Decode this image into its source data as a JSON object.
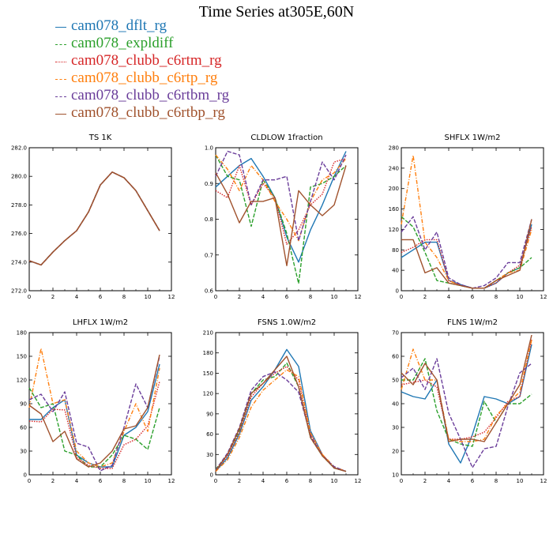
{
  "page": {
    "title": "Time Series at305E,60N"
  },
  "legend": [
    {
      "label": "cam078_dflt_rg",
      "color": "#1f77b4",
      "dash": "solid"
    },
    {
      "label": "cam078_expldiff",
      "color": "#2ca02c",
      "dash": "dashed"
    },
    {
      "label": "cam078_clubb_c6rtm_rg",
      "color": "#d62728",
      "dash": "dotted"
    },
    {
      "label": "cam078_clubb_c6rtp_rg",
      "color": "#ff7f0e",
      "dash": "dashdot"
    },
    {
      "label": "cam078_clubb_c6rtbm_rg",
      "color": "#6a3d9a",
      "dash": "dashed"
    },
    {
      "label": "cam078_clubb_c6rtbp_rg",
      "color": "#a0522d",
      "dash": "solid"
    }
  ],
  "chart_data": [
    {
      "type": "line",
      "title": "TS   1K",
      "xlim": [
        0,
        12
      ],
      "ylim": [
        272.0,
        282.0
      ],
      "xticks": [
        0,
        2,
        4,
        6,
        8,
        10,
        12
      ],
      "yticks": [
        272.0,
        274.0,
        276.0,
        278.0,
        280.0,
        282.0
      ],
      "ytick_labels": [
        "272.0",
        "274.0",
        "276.0",
        "278.0",
        "280.0",
        "282.0"
      ],
      "x": [
        0,
        1,
        2,
        3,
        4,
        5,
        6,
        7,
        8,
        9,
        10,
        11
      ],
      "series": [
        {
          "name": "cam078_dflt_rg",
          "values": [
            274.1,
            273.8,
            274.7,
            275.5,
            276.2,
            277.5,
            279.4,
            280.3,
            279.9,
            279.0,
            277.6,
            276.2
          ]
        },
        {
          "name": "cam078_expldiff",
          "values": [
            274.1,
            273.8,
            274.7,
            275.5,
            276.2,
            277.5,
            279.4,
            280.3,
            279.9,
            279.0,
            277.6,
            276.2
          ]
        },
        {
          "name": "cam078_clubb_c6rtm_rg",
          "values": [
            274.1,
            273.8,
            274.7,
            275.5,
            276.2,
            277.5,
            279.4,
            280.3,
            279.9,
            279.0,
            277.6,
            276.2
          ]
        },
        {
          "name": "cam078_clubb_c6rtp_rg",
          "values": [
            274.1,
            273.8,
            274.7,
            275.5,
            276.2,
            277.5,
            279.4,
            280.3,
            279.9,
            279.0,
            277.6,
            276.2
          ]
        },
        {
          "name": "cam078_clubb_c6rtbm_rg",
          "values": [
            274.1,
            273.8,
            274.7,
            275.5,
            276.2,
            277.5,
            279.4,
            280.3,
            279.9,
            279.0,
            277.6,
            276.2
          ]
        },
        {
          "name": "cam078_clubb_c6rtbp_rg",
          "values": [
            274.1,
            273.8,
            274.7,
            275.5,
            276.2,
            277.5,
            279.4,
            280.3,
            279.9,
            279.0,
            277.6,
            276.2
          ]
        }
      ]
    },
    {
      "type": "line",
      "title": "CLDLOW   1fraction",
      "xlim": [
        0,
        12
      ],
      "ylim": [
        0.6,
        1.0
      ],
      "xticks": [
        0,
        2,
        4,
        6,
        8,
        10,
        12
      ],
      "yticks": [
        0.6,
        0.7,
        0.8,
        0.9,
        1.0
      ],
      "ytick_labels": [
        "0.6",
        "0.7",
        "0.8",
        "0.9",
        "1.0"
      ],
      "x": [
        0,
        1,
        2,
        3,
        4,
        5,
        6,
        7,
        8,
        9,
        10,
        11
      ],
      "series": [
        {
          "name": "cam078_dflt_rg",
          "values": [
            0.89,
            0.92,
            0.95,
            0.97,
            0.92,
            0.86,
            0.75,
            0.68,
            0.77,
            0.84,
            0.92,
            0.99
          ]
        },
        {
          "name": "cam078_expldiff",
          "values": [
            0.98,
            0.92,
            0.91,
            0.78,
            0.91,
            0.86,
            0.76,
            0.62,
            0.89,
            0.9,
            0.92,
            0.95
          ]
        },
        {
          "name": "cam078_clubb_c6rtm_rg",
          "values": [
            0.88,
            0.86,
            0.95,
            0.84,
            0.9,
            0.86,
            0.73,
            0.77,
            0.84,
            0.87,
            0.96,
            0.97
          ]
        },
        {
          "name": "cam078_clubb_c6rtp_rg",
          "values": [
            0.98,
            0.94,
            0.88,
            0.95,
            0.91,
            0.85,
            0.8,
            0.74,
            0.85,
            0.91,
            0.93,
            0.97
          ]
        },
        {
          "name": "cam078_clubb_c6rtbm_rg",
          "values": [
            0.92,
            0.99,
            0.98,
            0.84,
            0.91,
            0.91,
            0.92,
            0.74,
            0.85,
            0.96,
            0.91,
            0.98
          ]
        },
        {
          "name": "cam078_clubb_c6rtbp_rg",
          "values": [
            0.93,
            0.87,
            0.79,
            0.85,
            0.85,
            0.86,
            0.67,
            0.88,
            0.84,
            0.81,
            0.84,
            0.95
          ]
        }
      ]
    },
    {
      "type": "line",
      "title": "SHFLX   1W/m2",
      "xlim": [
        0,
        12
      ],
      "ylim": [
        0,
        280
      ],
      "xticks": [
        0,
        2,
        4,
        6,
        8,
        10,
        12
      ],
      "yticks": [
        0,
        40,
        80,
        120,
        160,
        200,
        240,
        280
      ],
      "ytick_labels": [
        "0",
        "40",
        "80",
        "120",
        "160",
        "200",
        "240",
        "280"
      ],
      "x": [
        0,
        1,
        2,
        3,
        4,
        5,
        6,
        7,
        8,
        9,
        10,
        11
      ],
      "series": [
        {
          "name": "cam078_dflt_rg",
          "values": [
            65,
            80,
            95,
            95,
            20,
            12,
            5,
            5,
            15,
            35,
            45,
            130
          ]
        },
        {
          "name": "cam078_expldiff",
          "values": [
            145,
            125,
            75,
            20,
            15,
            10,
            5,
            5,
            20,
            35,
            45,
            65
          ]
        },
        {
          "name": "cam078_clubb_c6rtm_rg",
          "values": [
            75,
            85,
            100,
            100,
            20,
            10,
            5,
            5,
            15,
            35,
            50,
            125
          ]
        },
        {
          "name": "cam078_clubb_c6rtp_rg",
          "values": [
            130,
            265,
            95,
            65,
            20,
            10,
            5,
            5,
            20,
            35,
            40,
            120
          ]
        },
        {
          "name": "cam078_clubb_c6rtbm_rg",
          "values": [
            115,
            145,
            80,
            115,
            25,
            12,
            5,
            10,
            25,
            55,
            55,
            140
          ]
        },
        {
          "name": "cam078_clubb_c6rtbp_rg",
          "values": [
            100,
            100,
            35,
            45,
            15,
            10,
            5,
            5,
            20,
            30,
            40,
            140
          ]
        }
      ]
    },
    {
      "type": "line",
      "title": "LHFLX   1W/m2",
      "xlim": [
        0,
        12
      ],
      "ylim": [
        0,
        180
      ],
      "xticks": [
        0,
        2,
        4,
        6,
        8,
        10,
        12
      ],
      "yticks": [
        0,
        30,
        60,
        90,
        120,
        150,
        180
      ],
      "ytick_labels": [
        "0",
        "30",
        "60",
        "90",
        "120",
        "150",
        "180"
      ],
      "x": [
        0,
        1,
        2,
        3,
        4,
        5,
        6,
        7,
        8,
        9,
        10,
        11
      ],
      "series": [
        {
          "name": "cam078_dflt_rg",
          "values": [
            70,
            70,
            85,
            95,
            25,
            15,
            10,
            10,
            50,
            60,
            80,
            140
          ]
        },
        {
          "name": "cam078_expldiff",
          "values": [
            110,
            85,
            90,
            30,
            25,
            10,
            10,
            25,
            50,
            45,
            32,
            85
          ]
        },
        {
          "name": "cam078_clubb_c6rtm_rg",
          "values": [
            68,
            67,
            83,
            82,
            22,
            12,
            8,
            8,
            38,
            45,
            62,
            118
          ]
        },
        {
          "name": "cam078_clubb_c6rtp_rg",
          "values": [
            85,
            160,
            90,
            95,
            30,
            15,
            10,
            15,
            55,
            90,
            55,
            135
          ]
        },
        {
          "name": "cam078_clubb_c6rtbm_rg",
          "values": [
            95,
            102,
            80,
            105,
            40,
            35,
            5,
            12,
            60,
            115,
            85,
            150
          ]
        },
        {
          "name": "cam078_clubb_c6rtbp_rg",
          "values": [
            88,
            77,
            42,
            55,
            20,
            10,
            15,
            30,
            58,
            62,
            85,
            152
          ]
        }
      ]
    },
    {
      "type": "line",
      "title": "FSNS   1.0W/m2",
      "xlim": [
        0,
        12
      ],
      "ylim": [
        0,
        210
      ],
      "xticks": [
        0,
        2,
        4,
        6,
        8,
        10,
        12
      ],
      "yticks": [
        0,
        30,
        60,
        90,
        120,
        150,
        180,
        210
      ],
      "ytick_labels": [
        "0",
        "30",
        "60",
        "90",
        "120",
        "150",
        "180",
        "210"
      ],
      "x": [
        0,
        1,
        2,
        3,
        4,
        5,
        6,
        7,
        8,
        9,
        10,
        11
      ],
      "series": [
        {
          "name": "cam078_dflt_rg",
          "values": [
            5,
            25,
            60,
            110,
            130,
            155,
            185,
            160,
            65,
            30,
            10,
            5
          ]
        },
        {
          "name": "cam078_expldiff",
          "values": [
            8,
            30,
            65,
            120,
            140,
            145,
            165,
            130,
            55,
            28,
            10,
            5
          ]
        },
        {
          "name": "cam078_clubb_c6rtm_rg",
          "values": [
            6,
            28,
            62,
            115,
            135,
            150,
            160,
            140,
            60,
            30,
            10,
            5
          ]
        },
        {
          "name": "cam078_clubb_c6rtp_rg",
          "values": [
            5,
            22,
            55,
            100,
            125,
            140,
            155,
            145,
            62,
            30,
            12,
            5
          ]
        },
        {
          "name": "cam078_clubb_c6rtbm_rg",
          "values": [
            7,
            32,
            70,
            125,
            145,
            152,
            140,
            122,
            58,
            28,
            12,
            5
          ]
        },
        {
          "name": "cam078_clubb_c6rtbp_rg",
          "values": [
            6,
            30,
            68,
            120,
            135,
            155,
            175,
            130,
            55,
            28,
            10,
            5
          ]
        }
      ]
    },
    {
      "type": "line",
      "title": "FLNS   1W/m2",
      "xlim": [
        0,
        12
      ],
      "ylim": [
        10,
        70
      ],
      "xticks": [
        0,
        2,
        4,
        6,
        8,
        10,
        12
      ],
      "yticks": [
        10,
        20,
        30,
        40,
        50,
        60,
        70
      ],
      "ytick_labels": [
        "10",
        "20",
        "30",
        "40",
        "50",
        "60",
        "70"
      ],
      "x": [
        0,
        1,
        2,
        3,
        4,
        5,
        6,
        7,
        8,
        9,
        10,
        11
      ],
      "series": [
        {
          "name": "cam078_dflt_rg",
          "values": [
            45,
            43,
            42,
            50,
            23,
            15,
            27,
            43,
            42,
            40,
            43,
            65
          ]
        },
        {
          "name": "cam078_expldiff",
          "values": [
            50,
            50,
            59,
            37,
            25,
            23,
            22,
            41,
            32,
            40,
            40,
            44
          ]
        },
        {
          "name": "cam078_clubb_c6rtm_rg",
          "values": [
            48,
            49,
            50,
            47,
            25,
            25,
            26,
            28,
            34,
            41,
            43,
            67
          ]
        },
        {
          "name": "cam078_clubb_c6rtp_rg",
          "values": [
            46,
            63,
            50,
            50,
            25,
            24,
            24,
            25,
            35,
            40,
            45,
            67
          ]
        },
        {
          "name": "cam078_clubb_c6rtbm_rg",
          "values": [
            51,
            55,
            46,
            59,
            36,
            25,
            13,
            21,
            22,
            39,
            53,
            57
          ]
        },
        {
          "name": "cam078_clubb_c6rtbp_rg",
          "values": [
            53,
            48,
            57,
            50,
            24,
            25,
            25,
            24,
            32,
            40,
            48,
            69
          ]
        }
      ]
    }
  ]
}
